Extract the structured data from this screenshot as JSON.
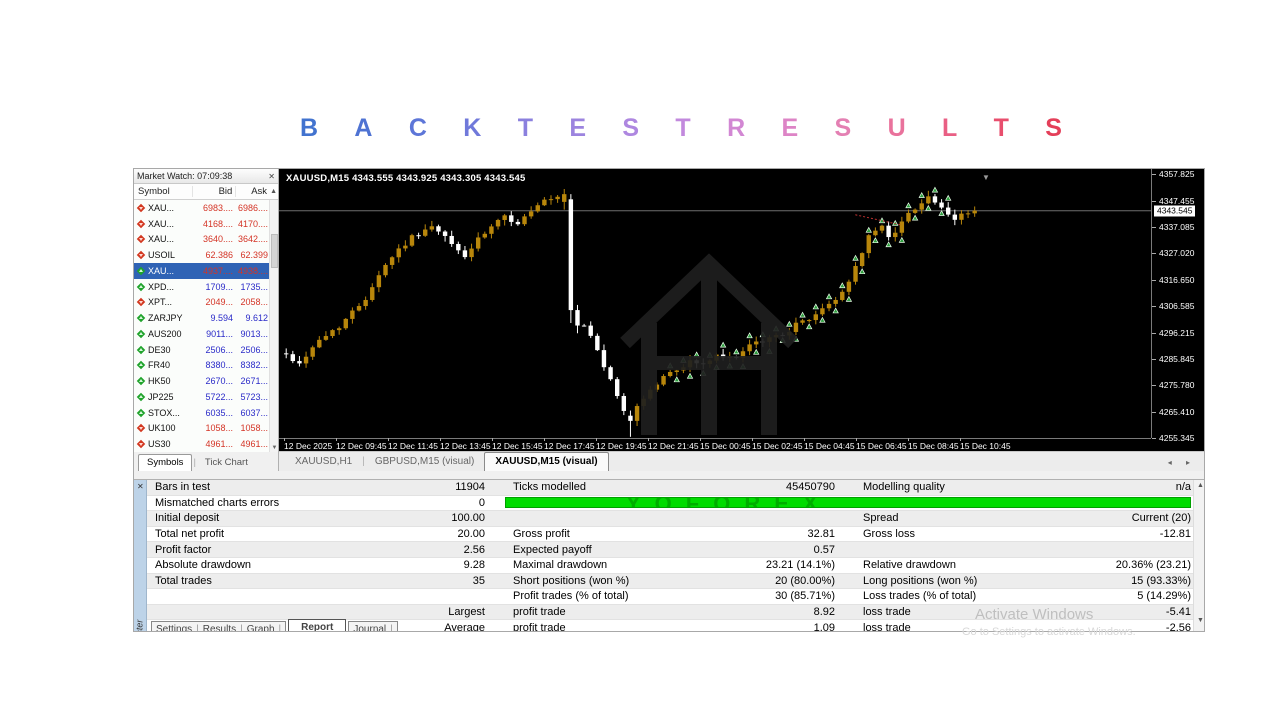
{
  "heading": {
    "text": "BACKTESTRESULTS",
    "letters": [
      {
        "ch": "B",
        "color": "#4273cf"
      },
      {
        "ch": "A",
        "color": "#4f73d3"
      },
      {
        "ch": "C",
        "color": "#5d76d8"
      },
      {
        "ch": "K",
        "color": "#7079da"
      },
      {
        "ch": "T",
        "color": "#8b80de"
      },
      {
        "ch": "E",
        "color": "#9c84df"
      },
      {
        "ch": "S",
        "color": "#ae87e0"
      },
      {
        "ch": "T",
        "color": "#c289dd"
      },
      {
        "ch": "R",
        "color": "#d287d3"
      },
      {
        "ch": "E",
        "color": "#dd84c6"
      },
      {
        "ch": "S",
        "color": "#e480b3"
      },
      {
        "ch": "U",
        "color": "#e9729c"
      },
      {
        "ch": "L",
        "color": "#e95f84"
      },
      {
        "ch": "T",
        "color": "#e84e6d"
      },
      {
        "ch": "S",
        "color": "#e43f59"
      }
    ]
  },
  "market_watch": {
    "title": "Market Watch: 07:09:38",
    "close_glyph": "✕",
    "columns": [
      "Symbol",
      "Bid",
      "Ask"
    ],
    "header_arrow": "▲",
    "rows": [
      {
        "symbol": "XAU...",
        "bid": "6983....",
        "ask": "6986....",
        "arrow": "down",
        "trend": "down",
        "selected": false
      },
      {
        "symbol": "XAU...",
        "bid": "4168....",
        "ask": "4170....",
        "arrow": "down",
        "trend": "down",
        "selected": false
      },
      {
        "symbol": "XAU...",
        "bid": "3640....",
        "ask": "3642....",
        "arrow": "down",
        "trend": "down",
        "selected": false
      },
      {
        "symbol": "USOIL",
        "bid": "62.386",
        "ask": "62.399",
        "arrow": "down",
        "trend": "down",
        "selected": false
      },
      {
        "symbol": "XAU...",
        "bid": "4937....",
        "ask": "4938....",
        "arrow": "up",
        "trend": "down",
        "selected": true
      },
      {
        "symbol": "XPD...",
        "bid": "1709...",
        "ask": "1735...",
        "arrow": "up",
        "trend": "up",
        "selected": false
      },
      {
        "symbol": "XPT...",
        "bid": "2049...",
        "ask": "2058...",
        "arrow": "down",
        "trend": "down",
        "selected": false
      },
      {
        "symbol": "ZARJPY",
        "bid": "9.594",
        "ask": "9.612",
        "arrow": "up",
        "trend": "up",
        "selected": false
      },
      {
        "symbol": "AUS200",
        "bid": "9011...",
        "ask": "9013...",
        "arrow": "up",
        "trend": "up",
        "selected": false
      },
      {
        "symbol": "DE30",
        "bid": "2506...",
        "ask": "2506...",
        "arrow": "up",
        "trend": "up",
        "selected": false
      },
      {
        "symbol": "FR40",
        "bid": "8380...",
        "ask": "8382...",
        "arrow": "up",
        "trend": "up",
        "selected": false
      },
      {
        "symbol": "HK50",
        "bid": "2670...",
        "ask": "2671...",
        "arrow": "up",
        "trend": "up",
        "selected": false
      },
      {
        "symbol": "JP225",
        "bid": "5722...",
        "ask": "5723...",
        "arrow": "up",
        "trend": "up",
        "selected": false
      },
      {
        "symbol": "STOX...",
        "bid": "6035...",
        "ask": "6037...",
        "arrow": "up",
        "trend": "up",
        "selected": false
      },
      {
        "symbol": "UK100",
        "bid": "1058...",
        "ask": "1058...",
        "arrow": "down",
        "trend": "down",
        "selected": false
      },
      {
        "symbol": "US30",
        "bid": "4961...",
        "ask": "4961...",
        "arrow": "down",
        "trend": "down",
        "selected": false
      }
    ],
    "tabs": [
      {
        "label": "Symbols",
        "active": true
      },
      {
        "label": "Tick Chart",
        "active": false
      }
    ]
  },
  "chart": {
    "title_line": "XAUUSD,M15  4343.555 4343.925 4343.305 4343.545",
    "current_price": "4343.545",
    "top_marker_glyph": "▼"
  },
  "chart_data": {
    "type": "candlestick",
    "symbol": "XAUUSD",
    "timeframe": "M15",
    "ohlc_display": {
      "open": "4343.555",
      "high": "4343.925",
      "low": "4343.305",
      "close": "4343.545"
    },
    "price_axis": {
      "top_price": 4357.825,
      "bottom_price": 4255.345,
      "ticks": [
        "4357.825",
        "4347.455",
        "4337.085",
        "4327.020",
        "4316.650",
        "4306.585",
        "4296.215",
        "4285.845",
        "4275.780",
        "4265.410",
        "4255.345"
      ]
    },
    "time_ticks": [
      "12 Dec 2025",
      "12 Dec 09:45",
      "12 Dec 11:45",
      "12 Dec 13:45",
      "12 Dec 15:45",
      "12 Dec 17:45",
      "12 Dec 19:45",
      "12 Dec 21:45",
      "15 Dec 00:45",
      "15 Dec 02:45",
      "15 Dec 04:45",
      "15 Dec 06:45",
      "15 Dec 08:45",
      "15 Dec 10:45"
    ],
    "count": 105,
    "current_price": 4343.545,
    "anchors": [
      [
        0,
        4288
      ],
      [
        2,
        4284
      ],
      [
        4,
        4291
      ],
      [
        6,
        4295
      ],
      [
        8,
        4299
      ],
      [
        10,
        4304
      ],
      [
        12,
        4310
      ],
      [
        14,
        4319
      ],
      [
        16,
        4326
      ],
      [
        18,
        4331
      ],
      [
        20,
        4335
      ],
      [
        22,
        4337
      ],
      [
        24,
        4333
      ],
      [
        26,
        4328
      ],
      [
        27,
        4326
      ],
      [
        29,
        4332
      ],
      [
        31,
        4337
      ],
      [
        33,
        4341
      ],
      [
        35,
        4339
      ],
      [
        37,
        4343
      ],
      [
        39,
        4347
      ],
      [
        41,
        4348
      ],
      [
        42,
        4350
      ],
      [
        43,
        4305
      ],
      [
        45,
        4299
      ],
      [
        47,
        4290
      ],
      [
        49,
        4277
      ],
      [
        51,
        4266
      ],
      [
        52,
        4262
      ],
      [
        53,
        4268
      ],
      [
        55,
        4274
      ],
      [
        57,
        4279
      ],
      [
        59,
        4282
      ],
      [
        61,
        4285
      ],
      [
        63,
        4284
      ],
      [
        65,
        4287
      ],
      [
        67,
        4286
      ],
      [
        69,
        4289
      ],
      [
        71,
        4292
      ],
      [
        73,
        4294
      ],
      [
        75,
        4296
      ],
      [
        77,
        4299
      ],
      [
        79,
        4302
      ],
      [
        81,
        4305
      ],
      [
        83,
        4309
      ],
      [
        85,
        4316
      ],
      [
        86,
        4322
      ],
      [
        87,
        4328
      ],
      [
        88,
        4333
      ],
      [
        89,
        4336
      ],
      [
        90,
        4337
      ],
      [
        91,
        4334
      ],
      [
        92,
        4336
      ],
      [
        93,
        4339
      ],
      [
        94,
        4342
      ],
      [
        95,
        4345
      ],
      [
        96,
        4347
      ],
      [
        97,
        4349
      ],
      [
        98,
        4347
      ],
      [
        99,
        4344
      ],
      [
        100,
        4341
      ],
      [
        101,
        4340
      ],
      [
        102,
        4342
      ],
      [
        103,
        4343
      ],
      [
        104,
        4343.5
      ]
    ],
    "overrides": {
      "42": [
        4347,
        4352,
        4344,
        4350
      ],
      "43": [
        4348,
        4350,
        4300,
        4305
      ],
      "44": [
        4305,
        4307,
        4296,
        4299
      ],
      "52": [
        4264,
        4266,
        4255.8,
        4262
      ]
    },
    "markers": {
      "from": 58,
      "to": 100,
      "color": "#2e9e3e"
    },
    "trade_lines": [
      {
        "i1": 86,
        "p1": 4342,
        "i2": 93,
        "p2": 4338,
        "color": "#c03030"
      }
    ],
    "colors": {
      "bull": "#b8860b",
      "bear": "#ffffff",
      "bg": "#000000",
      "price_line": "#6e6e6e"
    }
  },
  "chart_tabs": {
    "items": [
      {
        "label": "XAUUSD,H1",
        "active": false
      },
      {
        "label": "GBPUSD,M15 (visual)",
        "active": false
      },
      {
        "label": "XAUUSD,M15 (visual)",
        "active": true
      }
    ],
    "scroll_arrows": "◂ ▸"
  },
  "tester": {
    "panel_label": "Tester",
    "close_glyph": "✕",
    "scroll_up": "▲",
    "scroll_down": "▼",
    "watermark": "YOFOREX",
    "report_rows": [
      {
        "c1": "Bars in test",
        "v1": "11904",
        "c2": "Ticks modelled",
        "v2": "45450790",
        "c3": "Modelling quality",
        "v3": "n/a"
      },
      {
        "c1": "Mismatched charts errors",
        "v1": "0",
        "bar": true
      },
      {
        "c1": "Initial deposit",
        "v1": "100.00",
        "c2": "",
        "v2": "",
        "c3": "Spread",
        "v3": "Current (20)"
      },
      {
        "c1": "Total net profit",
        "v1": "20.00",
        "c2": "Gross profit",
        "v2": "32.81",
        "c3": "Gross loss",
        "v3": "-12.81"
      },
      {
        "c1": "Profit factor",
        "v1": "2.56",
        "c2": "Expected payoff",
        "v2": "0.57",
        "c3": "",
        "v3": ""
      },
      {
        "c1": "Absolute drawdown",
        "v1": "9.28",
        "c2": "Maximal drawdown",
        "v2": "23.21  (14.1%)",
        "c3": "Relative drawdown",
        "v3": "20.36% (23.21)"
      },
      {
        "c1": "Total trades",
        "v1": "35",
        "c2": "Short positions (won %)",
        "v2": "20 (80.00%)",
        "c3": "Long positions (won %)",
        "v3": "15 (93.33%)"
      },
      {
        "c1": "",
        "v1": "",
        "c2": "Profit trades (% of total)",
        "v2": "30 (85.71%)",
        "c3": "Loss trades (% of total)",
        "v3": "5 (14.29%)"
      },
      {
        "c1": "",
        "v1": "Largest",
        "c2": "profit trade",
        "v2": "8.92",
        "c3": "loss trade",
        "v3": "-5.41"
      },
      {
        "c1": "",
        "v1": "Average",
        "c2": "profit trade",
        "v2": "1.09",
        "c3": "loss trade",
        "v3": "-2.56"
      }
    ],
    "tabs": {
      "group1": [
        "Settings",
        "Results",
        "Graph"
      ],
      "active": "Report",
      "group2": [
        "Journal"
      ]
    }
  },
  "os_watermark": {
    "line1": "Activate Windows",
    "line2": "Go to Settings to activate Windows."
  }
}
